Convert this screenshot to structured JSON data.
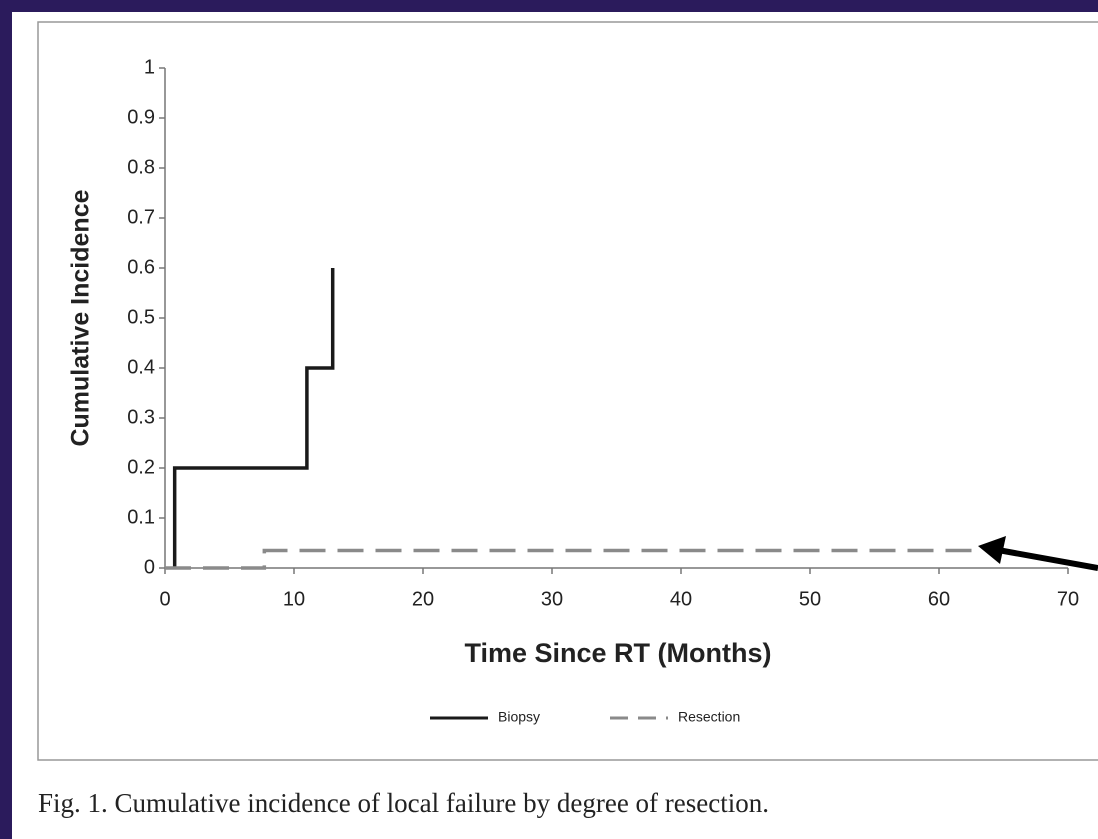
{
  "chart_data": {
    "type": "line",
    "caption": "Fig. 1.  Cumulative incidence of local failure by degree of resection.",
    "x_label": "Time Since RT (Months)",
    "y_label": "Cumulative Incidence",
    "xlim": [
      0,
      70
    ],
    "xticks": [
      0,
      10,
      20,
      30,
      40,
      50,
      60,
      70
    ],
    "ylim": [
      0,
      1
    ],
    "yticks": [
      0,
      0.1,
      0.2,
      0.3,
      0.4,
      0.5,
      0.6,
      0.7,
      0.8,
      0.9,
      1
    ],
    "grid": false,
    "legend": "bottom",
    "series": [
      {
        "name": "Biopsy",
        "color": "#1a1a1a",
        "line_style": "solid",
        "x": [
          0.75,
          0.75,
          11,
          11,
          13,
          13
        ],
        "values": [
          0,
          0.2,
          0.2,
          0.4,
          0.4,
          0.6
        ]
      },
      {
        "name": "Resection",
        "color": "#8a8a8a",
        "line_style": "dashed",
        "x": [
          0,
          7.7,
          7.7,
          63
        ],
        "values": [
          0,
          0,
          0.035,
          0.035
        ]
      }
    ]
  }
}
